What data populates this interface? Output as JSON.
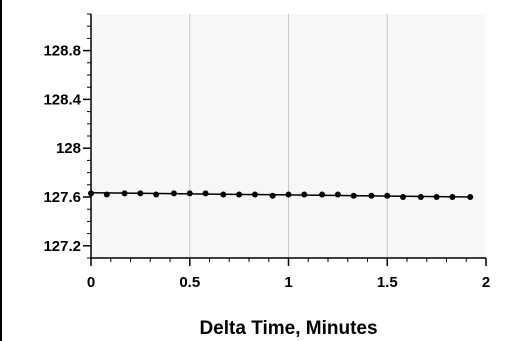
{
  "chart_data": {
    "type": "scatter",
    "title": "",
    "xlabel": "Delta Time, Minutes",
    "ylabel": "",
    "xlim": [
      0,
      2
    ],
    "ylim": [
      127.1,
      129.1
    ],
    "x_ticks": [
      0,
      0.5,
      1,
      1.5,
      2
    ],
    "x_tick_labels": [
      "0",
      "0.5",
      "1",
      "1.5",
      "2"
    ],
    "y_ticks": [
      127.2,
      127.6,
      128,
      128.4,
      128.8
    ],
    "y_tick_labels": [
      "127.2",
      "127.6",
      "128",
      "128.4",
      "128.8"
    ],
    "grid": "vertical",
    "series": [
      {
        "x": [
          0.0,
          0.08,
          0.17,
          0.25,
          0.33,
          0.42,
          0.5,
          0.58,
          0.67,
          0.75,
          0.83,
          0.92,
          1.0,
          1.08,
          1.17,
          1.25,
          1.33,
          1.42,
          1.5,
          1.58,
          1.67,
          1.75,
          1.83,
          1.92
        ],
        "y": [
          127.63,
          127.62,
          127.63,
          127.63,
          127.62,
          127.63,
          127.63,
          127.63,
          127.62,
          127.62,
          127.62,
          127.61,
          127.62,
          127.62,
          127.62,
          127.62,
          127.61,
          127.61,
          127.61,
          127.6,
          127.6,
          127.6,
          127.6,
          127.6
        ]
      }
    ],
    "fit_line": {
      "x": [
        0,
        1.93
      ],
      "y": [
        127.635,
        127.6
      ]
    },
    "colors": {
      "plot_background": "#f7f7f7",
      "grid": "#c8c8c8",
      "marker": "#000000",
      "line": "#000000"
    }
  }
}
